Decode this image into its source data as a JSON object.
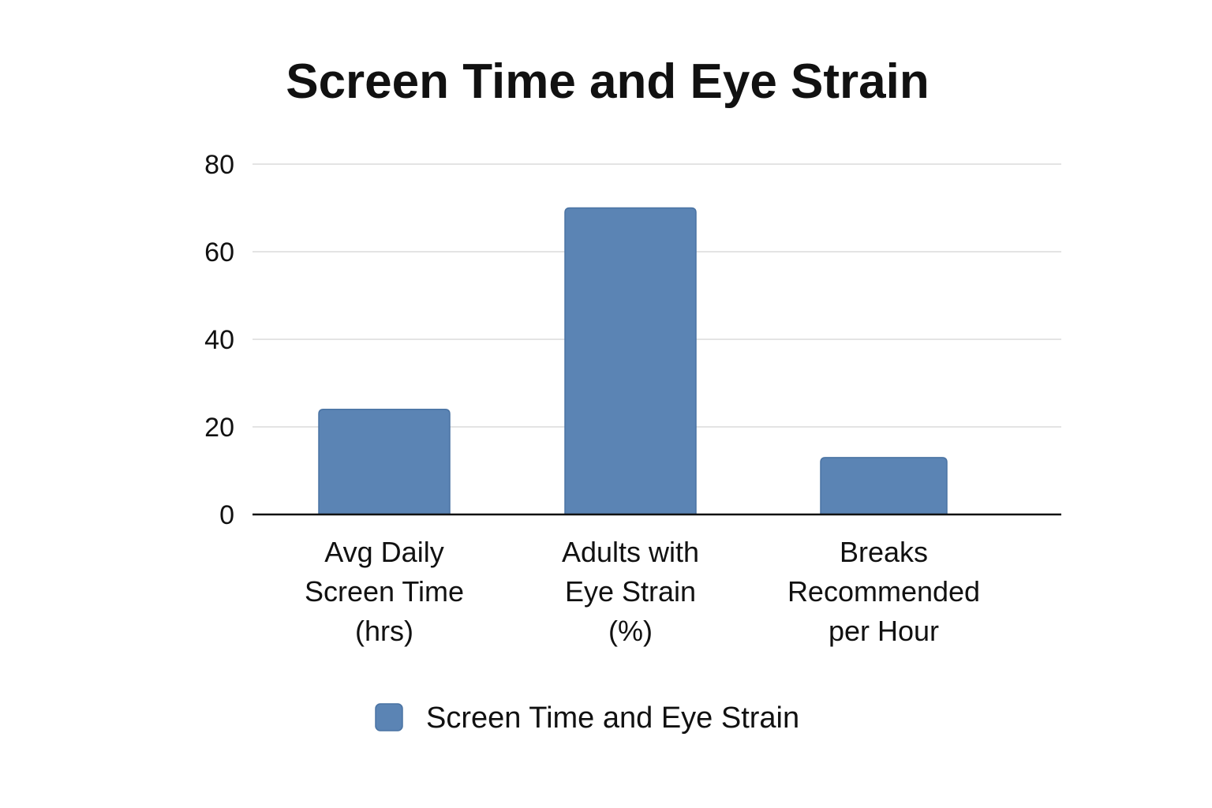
{
  "chart_data": {
    "type": "bar",
    "title": "Screen Time and Eye Strain",
    "categories": [
      [
        "Avg Daily",
        "Screen Time",
        "(hrs)"
      ],
      [
        "Adults with",
        "Eye Strain",
        "(%)"
      ],
      [
        "Breaks",
        "Recommended",
        "per Hour"
      ]
    ],
    "series": [
      {
        "name": "Screen Time and Eye Strain",
        "values": [
          24,
          70,
          13
        ],
        "color": "#5b84b4"
      }
    ],
    "ylim": [
      0,
      80
    ],
    "yticks": [
      0,
      20,
      40,
      60,
      80
    ],
    "grid": true,
    "legend_position": "bottom-center",
    "xlabel": "",
    "ylabel": ""
  }
}
